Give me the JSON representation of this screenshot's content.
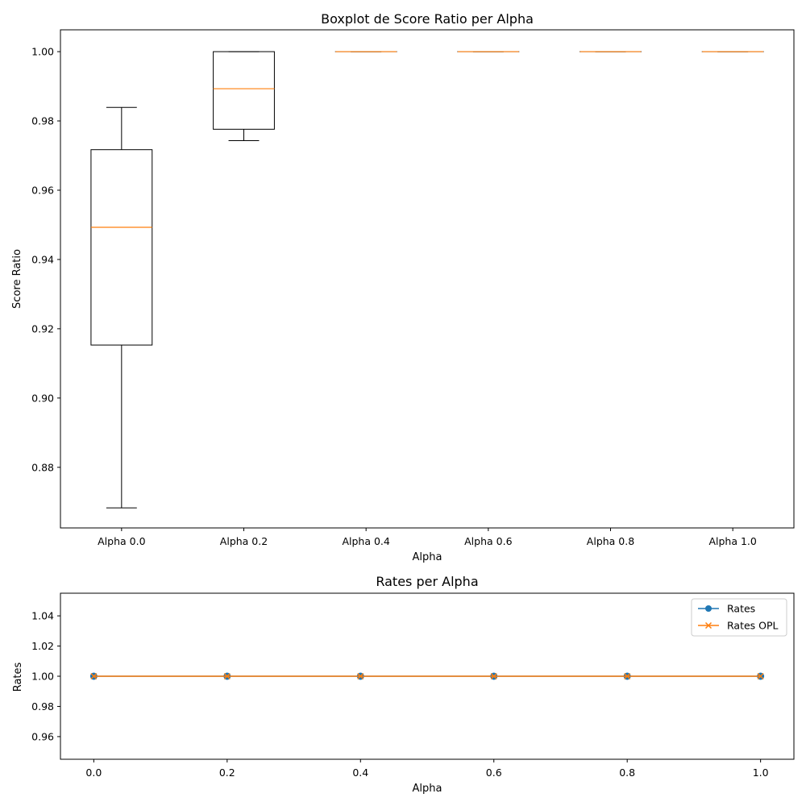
{
  "chart_data": [
    {
      "type": "boxplot",
      "title": "Boxplot de Score Ratio per Alpha",
      "xlabel": "Alpha",
      "ylabel": "Score Ratio",
      "categories": [
        "Alpha 0.0",
        "Alpha 0.2",
        "Alpha 0.4",
        "Alpha 0.6",
        "Alpha 0.8",
        "Alpha 1.0"
      ],
      "boxes": [
        {
          "whislo": 0.8683,
          "q1": 0.9153,
          "med": 0.9493,
          "q3": 0.9717,
          "whishi": 0.9839
        },
        {
          "whislo": 0.9743,
          "q1": 0.9776,
          "med": 0.9893,
          "q3": 1.0,
          "whishi": 1.0
        },
        {
          "whislo": 1.0,
          "q1": 1.0,
          "med": 1.0,
          "q3": 1.0,
          "whishi": 1.0
        },
        {
          "whislo": 1.0,
          "q1": 1.0,
          "med": 1.0,
          "q3": 1.0,
          "whishi": 1.0
        },
        {
          "whislo": 1.0,
          "q1": 1.0,
          "med": 1.0,
          "q3": 1.0,
          "whishi": 1.0
        },
        {
          "whislo": 1.0,
          "q1": 1.0,
          "med": 1.0,
          "q3": 1.0,
          "whishi": 1.0
        }
      ],
      "ylim": [
        0.8625,
        1.0063
      ],
      "yticks": [
        0.88,
        0.9,
        0.92,
        0.94,
        0.96,
        0.98,
        1.0
      ],
      "ytick_labels": [
        "0.88",
        "0.90",
        "0.92",
        "0.94",
        "0.96",
        "0.98",
        "1.00"
      ],
      "grid": false,
      "colors": {
        "box": "#000000",
        "median": "#ff7f0e"
      }
    },
    {
      "type": "line",
      "title": "Rates per Alpha",
      "xlabel": "Alpha",
      "ylabel": "Rates",
      "x": [
        0.0,
        0.2,
        0.4,
        0.6,
        0.8,
        1.0
      ],
      "series": [
        {
          "name": "Rates",
          "values": [
            1.0,
            1.0,
            1.0,
            1.0,
            1.0,
            1.0
          ],
          "marker": "circle",
          "color": "#1f77b4"
        },
        {
          "name": "Rates OPL",
          "values": [
            1.0,
            1.0,
            1.0,
            1.0,
            1.0,
            1.0
          ],
          "marker": "x",
          "color": "#ff7f0e"
        }
      ],
      "xlim": [
        -0.05,
        1.05
      ],
      "ylim": [
        0.945,
        1.055
      ],
      "xticks": [
        0.0,
        0.2,
        0.4,
        0.6,
        0.8,
        1.0
      ],
      "xtick_labels": [
        "0.0",
        "0.2",
        "0.4",
        "0.6",
        "0.8",
        "1.0"
      ],
      "yticks": [
        0.96,
        0.98,
        1.0,
        1.02,
        1.04
      ],
      "ytick_labels": [
        "0.96",
        "0.98",
        "1.00",
        "1.02",
        "1.04"
      ],
      "legend": "top-right",
      "grid": false
    }
  ]
}
